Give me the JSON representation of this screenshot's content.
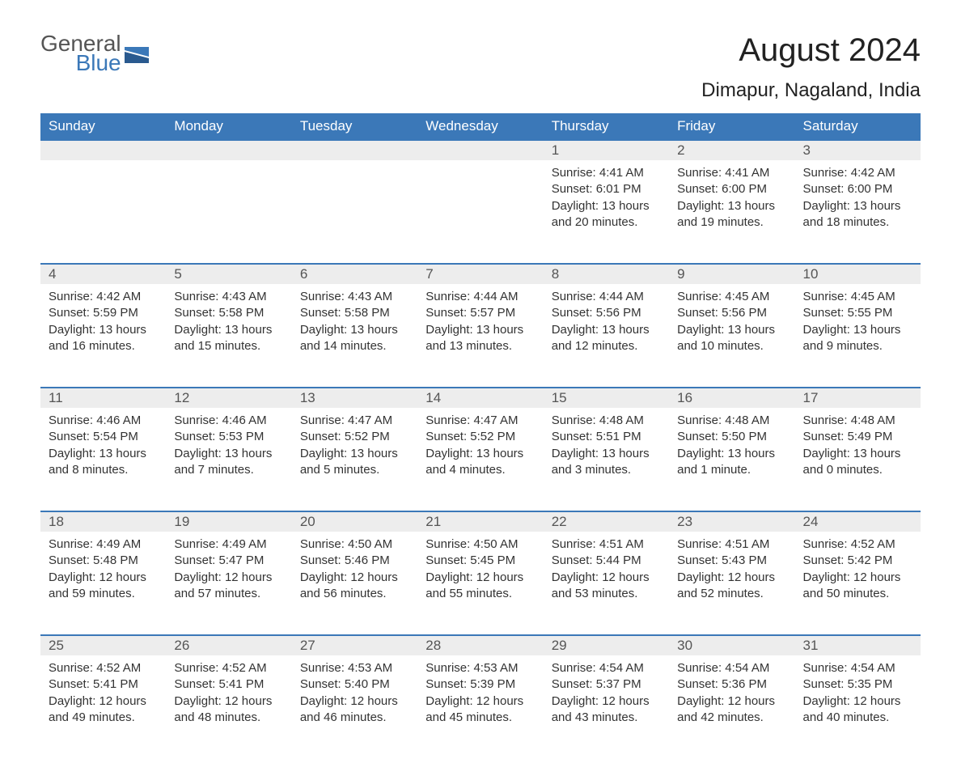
{
  "logo": {
    "general": "General",
    "blue": "Blue"
  },
  "title": "August 2024",
  "subtitle": "Dimapur, Nagaland, India",
  "colors": {
    "header_bg": "#3b78b8",
    "header_text": "#ffffff",
    "daynum_bg": "#ededed",
    "daynum_text": "#555555",
    "body_text": "#333333",
    "page_bg": "#ffffff",
    "border_top": "#3b78b8"
  },
  "fonts": {
    "title": 40,
    "subtitle": 24,
    "header": 17,
    "daynum": 17,
    "content": 15
  },
  "day_headers": [
    "Sunday",
    "Monday",
    "Tuesday",
    "Wednesday",
    "Thursday",
    "Friday",
    "Saturday"
  ],
  "weeks": [
    [
      null,
      null,
      null,
      null,
      {
        "n": "1",
        "sunrise": "4:41 AM",
        "sunset": "6:01 PM",
        "daylight": "13 hours and 20 minutes."
      },
      {
        "n": "2",
        "sunrise": "4:41 AM",
        "sunset": "6:00 PM",
        "daylight": "13 hours and 19 minutes."
      },
      {
        "n": "3",
        "sunrise": "4:42 AM",
        "sunset": "6:00 PM",
        "daylight": "13 hours and 18 minutes."
      }
    ],
    [
      {
        "n": "4",
        "sunrise": "4:42 AM",
        "sunset": "5:59 PM",
        "daylight": "13 hours and 16 minutes."
      },
      {
        "n": "5",
        "sunrise": "4:43 AM",
        "sunset": "5:58 PM",
        "daylight": "13 hours and 15 minutes."
      },
      {
        "n": "6",
        "sunrise": "4:43 AM",
        "sunset": "5:58 PM",
        "daylight": "13 hours and 14 minutes."
      },
      {
        "n": "7",
        "sunrise": "4:44 AM",
        "sunset": "5:57 PM",
        "daylight": "13 hours and 13 minutes."
      },
      {
        "n": "8",
        "sunrise": "4:44 AM",
        "sunset": "5:56 PM",
        "daylight": "13 hours and 12 minutes."
      },
      {
        "n": "9",
        "sunrise": "4:45 AM",
        "sunset": "5:56 PM",
        "daylight": "13 hours and 10 minutes."
      },
      {
        "n": "10",
        "sunrise": "4:45 AM",
        "sunset": "5:55 PM",
        "daylight": "13 hours and 9 minutes."
      }
    ],
    [
      {
        "n": "11",
        "sunrise": "4:46 AM",
        "sunset": "5:54 PM",
        "daylight": "13 hours and 8 minutes."
      },
      {
        "n": "12",
        "sunrise": "4:46 AM",
        "sunset": "5:53 PM",
        "daylight": "13 hours and 7 minutes."
      },
      {
        "n": "13",
        "sunrise": "4:47 AM",
        "sunset": "5:52 PM",
        "daylight": "13 hours and 5 minutes."
      },
      {
        "n": "14",
        "sunrise": "4:47 AM",
        "sunset": "5:52 PM",
        "daylight": "13 hours and 4 minutes."
      },
      {
        "n": "15",
        "sunrise": "4:48 AM",
        "sunset": "5:51 PM",
        "daylight": "13 hours and 3 minutes."
      },
      {
        "n": "16",
        "sunrise": "4:48 AM",
        "sunset": "5:50 PM",
        "daylight": "13 hours and 1 minute."
      },
      {
        "n": "17",
        "sunrise": "4:48 AM",
        "sunset": "5:49 PM",
        "daylight": "13 hours and 0 minutes."
      }
    ],
    [
      {
        "n": "18",
        "sunrise": "4:49 AM",
        "sunset": "5:48 PM",
        "daylight": "12 hours and 59 minutes."
      },
      {
        "n": "19",
        "sunrise": "4:49 AM",
        "sunset": "5:47 PM",
        "daylight": "12 hours and 57 minutes."
      },
      {
        "n": "20",
        "sunrise": "4:50 AM",
        "sunset": "5:46 PM",
        "daylight": "12 hours and 56 minutes."
      },
      {
        "n": "21",
        "sunrise": "4:50 AM",
        "sunset": "5:45 PM",
        "daylight": "12 hours and 55 minutes."
      },
      {
        "n": "22",
        "sunrise": "4:51 AM",
        "sunset": "5:44 PM",
        "daylight": "12 hours and 53 minutes."
      },
      {
        "n": "23",
        "sunrise": "4:51 AM",
        "sunset": "5:43 PM",
        "daylight": "12 hours and 52 minutes."
      },
      {
        "n": "24",
        "sunrise": "4:52 AM",
        "sunset": "5:42 PM",
        "daylight": "12 hours and 50 minutes."
      }
    ],
    [
      {
        "n": "25",
        "sunrise": "4:52 AM",
        "sunset": "5:41 PM",
        "daylight": "12 hours and 49 minutes."
      },
      {
        "n": "26",
        "sunrise": "4:52 AM",
        "sunset": "5:41 PM",
        "daylight": "12 hours and 48 minutes."
      },
      {
        "n": "27",
        "sunrise": "4:53 AM",
        "sunset": "5:40 PM",
        "daylight": "12 hours and 46 minutes."
      },
      {
        "n": "28",
        "sunrise": "4:53 AM",
        "sunset": "5:39 PM",
        "daylight": "12 hours and 45 minutes."
      },
      {
        "n": "29",
        "sunrise": "4:54 AM",
        "sunset": "5:37 PM",
        "daylight": "12 hours and 43 minutes."
      },
      {
        "n": "30",
        "sunrise": "4:54 AM",
        "sunset": "5:36 PM",
        "daylight": "12 hours and 42 minutes."
      },
      {
        "n": "31",
        "sunrise": "4:54 AM",
        "sunset": "5:35 PM",
        "daylight": "12 hours and 40 minutes."
      }
    ]
  ],
  "labels": {
    "sunrise": "Sunrise:",
    "sunset": "Sunset:",
    "daylight": "Daylight:"
  }
}
